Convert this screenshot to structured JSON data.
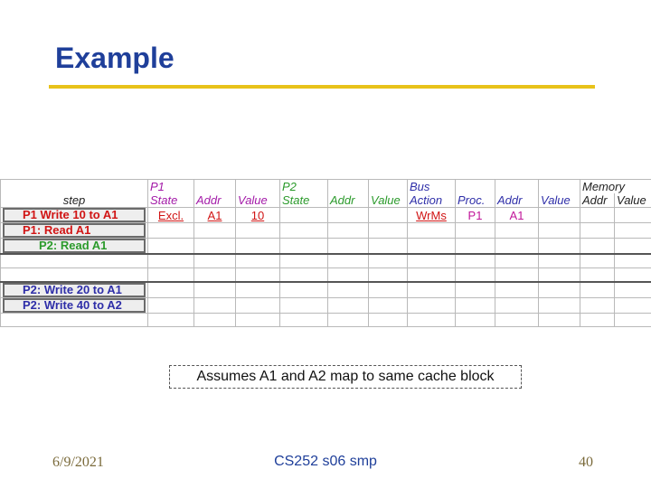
{
  "title": "Example",
  "table": {
    "header_row1": {
      "p1": "P1",
      "p2": "P2",
      "bus": "Bus",
      "memory": "Memory"
    },
    "header_row2": {
      "step": "step",
      "p1_state": "State",
      "p1_addr": "Addr",
      "p1_value": "Value",
      "p2_state": "State",
      "p2_addr": "Addr",
      "p2_value": "Value",
      "bus_action": "Action",
      "bus_proc": "Proc.",
      "bus_addr": "Addr",
      "bus_value": "Value",
      "mem_addr": "Addr",
      "mem_value": "Value"
    },
    "rows": [
      {
        "step": "P1 Write 10 to A1",
        "p1_state": "Excl.",
        "p1_addr": "A1",
        "p1_value": "10",
        "bus_action": "WrMs",
        "bus_proc": "P1",
        "bus_addr": "A1"
      },
      {
        "step": "P1: Read A1"
      },
      {
        "step": "P2: Read A1"
      },
      {
        "step": ""
      },
      {
        "step": ""
      },
      {
        "step": "P2: Write 20 to A1"
      },
      {
        "step": "P2: Write 40 to A2"
      },
      {
        "step": ""
      }
    ]
  },
  "note": "Assumes A1 and A2 map to same cache block",
  "footer": {
    "date": "6/9/2021",
    "course": "CS252 s06 smp",
    "page": "40"
  }
}
